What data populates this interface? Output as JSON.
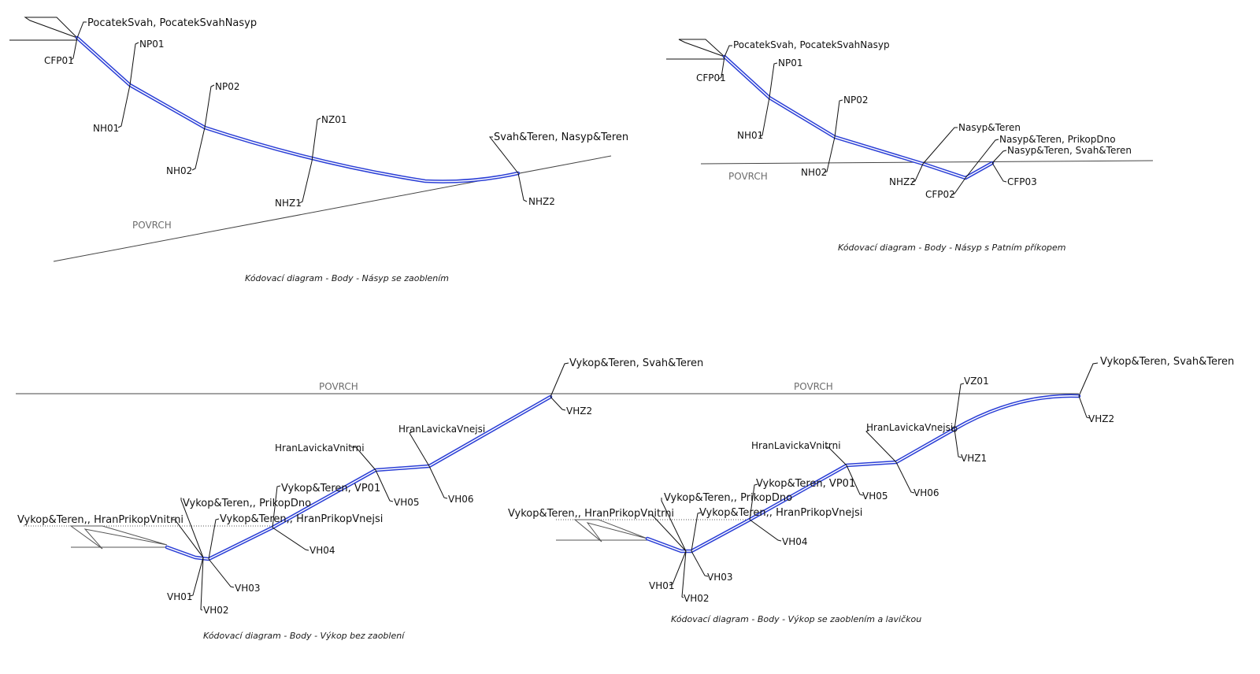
{
  "colors": {
    "alignment_blue": "#2b3fd6",
    "surface_grey": "#444444",
    "text": "#111111"
  },
  "diagrams": {
    "d1": {
      "caption": "Kódovací diagram - Body - Násyp se zaoblením",
      "surface_label": "POVRCH",
      "labels": {
        "top": "PocatekSvah, PocatekSvahNasyp",
        "cfp01": "CFP01",
        "np01": "NP01",
        "nh01": "NH01",
        "np02": "NP02",
        "nh02": "NH02",
        "nz01": "NZ01",
        "nhz1": "NHZ1",
        "end": "Svah&Teren, Nasyp&Teren",
        "nhz2": "NHZ2"
      }
    },
    "d2": {
      "caption": "Kódovací diagram - Body - Násyp s Patním příkopem",
      "surface_label": "POVRCH",
      "labels": {
        "top": "PocatekSvah, PocatekSvahNasyp",
        "cfp01": "CFP01",
        "np01": "NP01",
        "nh01": "NH01",
        "np02": "NP02",
        "nh02": "NH02",
        "nasyp_teren": "Nasyp&Teren",
        "nasyp_prikop": "Nasyp&Teren, PrikopDno",
        "nasyp_svah": "Nasyp&Teren, Svah&Teren",
        "nhz2": "NHZ2",
        "cfp02": "CFP02",
        "cfp03": "CFP03"
      }
    },
    "d3": {
      "caption": "Kódovací diagram - Body - Výkop bez zaoblení",
      "surface_label": "POVRCH",
      "labels": {
        "end": "Vykop&Teren, Svah&Teren",
        "vhz2": "VHZ2",
        "hran_vnejsi": "HranLavickaVnejsi",
        "hran_vnitrni": "HranLavickaVnitrni",
        "vh06": "VH06",
        "vh05": "VH05",
        "vp01": "Vykop&Teren, VP01",
        "prikop_dno": "Vykop&Teren,, PrikopDno",
        "prikop_vnitrni": "Vykop&Teren,, HranPrikopVnitrni",
        "prikop_vnejsi": "Vykop&Teren,, HranPrikopVnejsi",
        "vh04": "VH04",
        "vh03": "VH03",
        "vh01": "VH01",
        "vh02": "VH02"
      }
    },
    "d4": {
      "caption": "Kódovací diagram - Body - Výkop se zaoblením a lavičkou",
      "surface_label": "POVRCH",
      "labels": {
        "end": "Vykop&Teren, Svah&Teren",
        "vz01": "VZ01",
        "vhz2": "VHZ2",
        "vhz1": "VHZ1",
        "hran_vnejsi": "HranLavickaVnejsi",
        "hran_vnitrni": "HranLavickaVnitrni",
        "vh06": "VH06",
        "vh05": "VH05",
        "vp01": "Vykop&Teren, VP01",
        "prikop_dno": "Vykop&Teren,, PrikopDno",
        "prikop_vnitrni": "Vykop&Teren,, HranPrikopVnitrni",
        "prikop_vnejsi": "Vykop&Teren,, HranPrikopVnejsi",
        "vh04": "VH04",
        "vh03": "VH03",
        "vh01": "VH01",
        "vh02": "VH02"
      }
    }
  }
}
